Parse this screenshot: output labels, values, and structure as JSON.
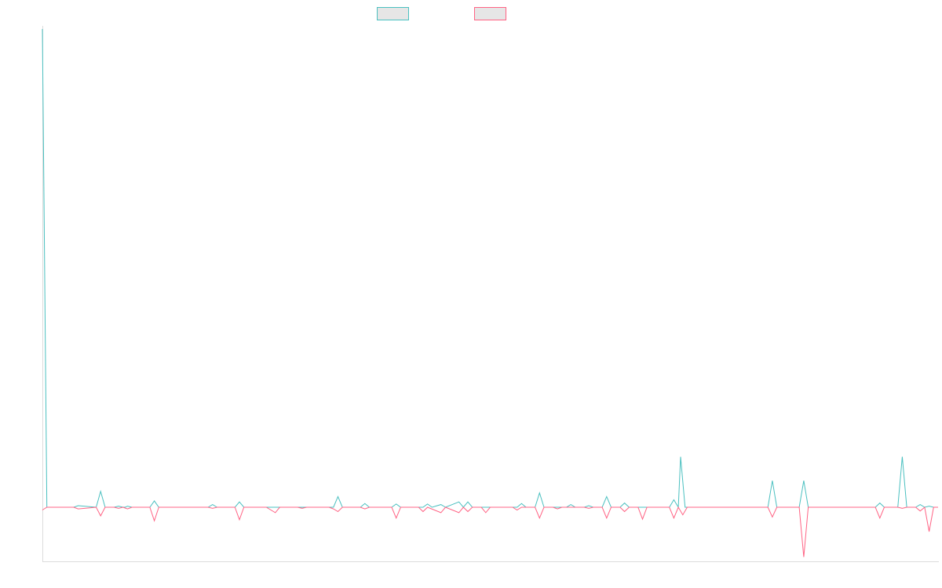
{
  "chart_data": {
    "type": "line",
    "title": "",
    "xlabel": "",
    "ylabel": "",
    "legend": "top-center",
    "grid": false,
    "colors": {
      "series_a": "#4bc0c0",
      "series_b": "#ff6384",
      "axis": "#dcdcdc",
      "swatch_fill": "#e6e6e6"
    },
    "xlim": [
      0,
      200
    ],
    "ylim": [
      -10,
      90
    ],
    "series": [
      {
        "key": "a",
        "color": "#4bc0c0",
        "points": [
          [
            0,
            90
          ],
          [
            1,
            0
          ],
          [
            7,
            0
          ],
          [
            8,
            0.3
          ],
          [
            12,
            0
          ],
          [
            13,
            3
          ],
          [
            14,
            0
          ],
          [
            16,
            0
          ],
          [
            17,
            0.2
          ],
          [
            18,
            0
          ],
          [
            18.5,
            0
          ],
          [
            19,
            0.2
          ],
          [
            20,
            0
          ],
          [
            24,
            0
          ],
          [
            25,
            1.2
          ],
          [
            26,
            0
          ],
          [
            33,
            0
          ],
          [
            37,
            0
          ],
          [
            38,
            0.5
          ],
          [
            39,
            0
          ],
          [
            43,
            0
          ],
          [
            44,
            1
          ],
          [
            45,
            0
          ],
          [
            50,
            0
          ],
          [
            52,
            0
          ],
          [
            60,
            0
          ],
          [
            65,
            0
          ],
          [
            66,
            2
          ],
          [
            67,
            0
          ],
          [
            71,
            0
          ],
          [
            72,
            0.7
          ],
          [
            73,
            0
          ],
          [
            78,
            0
          ],
          [
            79,
            0.6
          ],
          [
            80,
            0
          ],
          [
            84,
            0
          ],
          [
            85,
            0
          ],
          [
            86,
            0.6
          ],
          [
            87,
            0
          ],
          [
            89,
            0.5
          ],
          [
            90,
            0
          ],
          [
            93,
            1
          ],
          [
            94,
            0
          ],
          [
            95,
            1
          ],
          [
            96,
            0
          ],
          [
            103,
            0
          ],
          [
            106,
            0
          ],
          [
            107,
            0.7
          ],
          [
            108,
            0
          ],
          [
            110,
            0
          ],
          [
            111,
            2.7
          ],
          [
            112,
            0
          ],
          [
            114,
            0
          ],
          [
            115,
            0
          ],
          [
            117,
            0
          ],
          [
            118,
            0.5
          ],
          [
            119,
            0
          ],
          [
            121,
            0
          ],
          [
            122,
            0.3
          ],
          [
            123,
            0
          ],
          [
            125,
            0
          ],
          [
            126,
            2
          ],
          [
            127,
            0
          ],
          [
            129,
            0
          ],
          [
            130,
            0.8
          ],
          [
            131,
            0
          ],
          [
            133,
            0
          ],
          [
            134,
            0
          ],
          [
            140,
            0
          ],
          [
            141,
            1.4
          ],
          [
            142,
            0
          ],
          [
            142.5,
            9.5
          ],
          [
            143.5,
            0
          ],
          [
            162,
            0
          ],
          [
            163,
            5
          ],
          [
            164,
            0
          ],
          [
            169,
            0
          ],
          [
            170,
            5
          ],
          [
            171,
            0
          ],
          [
            186,
            0
          ],
          [
            187,
            0.8
          ],
          [
            188,
            0
          ],
          [
            191,
            0
          ],
          [
            192,
            9.5
          ],
          [
            193,
            0
          ],
          [
            195,
            0
          ],
          [
            196,
            0.5
          ],
          [
            197,
            0
          ],
          [
            198,
            0.2
          ],
          [
            199,
            0
          ],
          [
            200,
            0
          ]
        ]
      },
      {
        "key": "b",
        "color": "#ff6384",
        "points": [
          [
            0,
            -0.5
          ],
          [
            1,
            0
          ],
          [
            7,
            0
          ],
          [
            8,
            -0.3
          ],
          [
            12,
            0
          ],
          [
            13,
            -1.6
          ],
          [
            14,
            0
          ],
          [
            16,
            0
          ],
          [
            17,
            -0.2
          ],
          [
            18,
            0
          ],
          [
            19,
            -0.3
          ],
          [
            20,
            0
          ],
          [
            24,
            0
          ],
          [
            25,
            -2.5
          ],
          [
            26,
            0
          ],
          [
            33,
            0
          ],
          [
            37,
            0
          ],
          [
            38,
            -0.2
          ],
          [
            39,
            0
          ],
          [
            43,
            0
          ],
          [
            44,
            -2.3
          ],
          [
            45,
            0
          ],
          [
            50,
            0
          ],
          [
            52,
            -1
          ],
          [
            53,
            0
          ],
          [
            57,
            0
          ],
          [
            58,
            -0.2
          ],
          [
            59,
            0
          ],
          [
            64,
            0
          ],
          [
            65,
            -0.3
          ],
          [
            66,
            -0.8
          ],
          [
            67,
            0
          ],
          [
            71,
            0
          ],
          [
            72,
            -0.3
          ],
          [
            73,
            0
          ],
          [
            78,
            0
          ],
          [
            79,
            -2
          ],
          [
            80,
            0
          ],
          [
            84,
            0
          ],
          [
            85,
            -0.8
          ],
          [
            86,
            0
          ],
          [
            89,
            -1
          ],
          [
            90,
            0
          ],
          [
            93,
            -1
          ],
          [
            94,
            0
          ],
          [
            95,
            -0.8
          ],
          [
            96,
            0
          ],
          [
            98,
            0
          ],
          [
            99,
            -1
          ],
          [
            100,
            0
          ],
          [
            103,
            0
          ],
          [
            105,
            0
          ],
          [
            106,
            -0.5
          ],
          [
            107,
            0
          ],
          [
            110,
            0
          ],
          [
            111,
            -2
          ],
          [
            112,
            0
          ],
          [
            114,
            0
          ],
          [
            115,
            -0.3
          ],
          [
            116,
            0
          ],
          [
            121,
            0
          ],
          [
            122,
            -0.2
          ],
          [
            123,
            0
          ],
          [
            125,
            0
          ],
          [
            126,
            -2
          ],
          [
            127,
            0
          ],
          [
            129,
            0
          ],
          [
            130,
            -0.8
          ],
          [
            131,
            0
          ],
          [
            133,
            0
          ],
          [
            134,
            -2.2
          ],
          [
            135,
            0
          ],
          [
            140,
            0
          ],
          [
            141,
            -2
          ],
          [
            142,
            0
          ],
          [
            143,
            -1.4
          ],
          [
            144,
            0
          ],
          [
            162,
            0
          ],
          [
            163,
            -1.8
          ],
          [
            164,
            0
          ],
          [
            169,
            0
          ],
          [
            170,
            -9.2
          ],
          [
            171,
            0
          ],
          [
            186,
            0
          ],
          [
            187,
            -2
          ],
          [
            188,
            0
          ],
          [
            191,
            0
          ],
          [
            192,
            -0.2
          ],
          [
            193,
            0
          ],
          [
            195,
            0
          ],
          [
            196,
            -0.7
          ],
          [
            197,
            0
          ],
          [
            198,
            -4.5
          ],
          [
            199,
            0
          ],
          [
            200,
            0
          ]
        ]
      }
    ]
  }
}
